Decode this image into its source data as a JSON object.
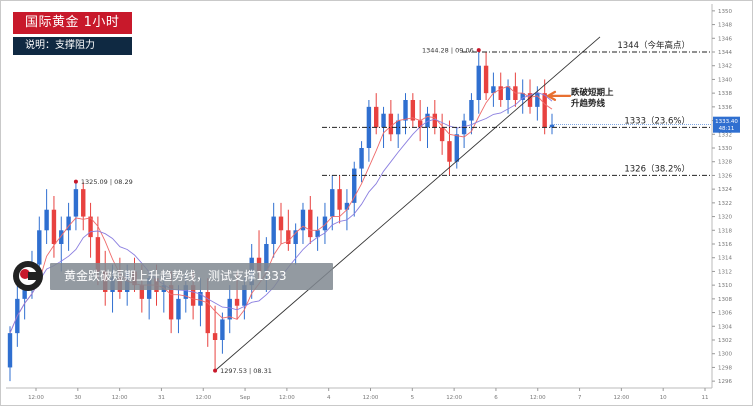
{
  "header": {
    "title": "国际黄金  1小时",
    "subtitle": "说明：支撑阻力"
  },
  "banner": {
    "text": "黄金跌破短期上升趋势线，测试支撑1333"
  },
  "colors": {
    "bull": "#2f6fd0",
    "bear": "#e8423f",
    "ma_fast": "#ef6b6b",
    "ma_slow": "#8b7fe0",
    "title_bg": "#c8192b",
    "subtitle_bg": "#0f2942",
    "price_tag": "#2f6fd0",
    "arrow": "#e87030"
  },
  "chart_data": {
    "type": "candlestick",
    "ylim": [
      1295,
      1351
    ],
    "y_ticks": [
      1296,
      1298,
      1300,
      1302,
      1304,
      1306,
      1308,
      1310,
      1312,
      1314,
      1316,
      1318,
      1320,
      1322,
      1324,
      1326,
      1328,
      1330,
      1332,
      1334,
      1336,
      1338,
      1340,
      1342,
      1344,
      1346,
      1348,
      1350
    ],
    "x_labels": [
      "12:00",
      "30",
      "12:00",
      "31",
      "12:00",
      "Sep",
      "12:00",
      "4",
      "12:00",
      "5",
      "12:00",
      "6",
      "12:00",
      "7",
      "12:00",
      "10",
      "11"
    ],
    "current_price": "1333.40",
    "current_sub": "48:11",
    "levels": [
      {
        "label": "1344（今年高点）",
        "price": 1344
      },
      {
        "label": "1333（23.6%）",
        "price": 1333
      },
      {
        "label": "1326（38.2%）",
        "price": 1326
      }
    ],
    "annotations": [
      {
        "text": "1325.09 | 08.29",
        "price": 1325.09
      },
      {
        "text": "1297.53 | 08.31",
        "price": 1297.53
      },
      {
        "text": "1344.28 | 09.06",
        "price": 1344.28
      }
    ],
    "callout": [
      "跌破短期上",
      "升趋势线"
    ],
    "trendline": [
      [
        1297.5,
        "start"
      ],
      [
        1344.5,
        "end"
      ]
    ],
    "candles": [
      [
        1298,
        1304,
        1296,
        1303
      ],
      [
        1303,
        1310,
        1301,
        1308
      ],
      [
        1308,
        1313,
        1305,
        1311
      ],
      [
        1311,
        1315,
        1308,
        1313
      ],
      [
        1313,
        1320,
        1310,
        1318
      ],
      [
        1318,
        1324,
        1316,
        1321
      ],
      [
        1321,
        1323,
        1314,
        1316
      ],
      [
        1316,
        1320,
        1312,
        1318
      ],
      [
        1318,
        1322,
        1315,
        1320
      ],
      [
        1320,
        1325.09,
        1318,
        1324
      ],
      [
        1324,
        1325,
        1318,
        1320
      ],
      [
        1320,
        1322,
        1314,
        1317
      ],
      [
        1317,
        1320,
        1310,
        1312
      ],
      [
        1312,
        1315,
        1307,
        1309
      ],
      [
        1309,
        1313,
        1306,
        1311
      ],
      [
        1311,
        1314,
        1308,
        1309
      ],
      [
        1309,
        1313,
        1307,
        1312
      ],
      [
        1312,
        1314,
        1309,
        1310
      ],
      [
        1310,
        1313,
        1306,
        1308
      ],
      [
        1308,
        1312,
        1305,
        1311
      ],
      [
        1311,
        1313,
        1307,
        1309
      ],
      [
        1309,
        1312,
        1306,
        1310
      ],
      [
        1310,
        1312,
        1303,
        1305
      ],
      [
        1305,
        1310,
        1303,
        1308
      ],
      [
        1308,
        1312,
        1306,
        1310
      ],
      [
        1310,
        1312,
        1305,
        1307
      ],
      [
        1307,
        1311,
        1304,
        1309
      ],
      [
        1309,
        1311,
        1301,
        1303
      ],
      [
        1303,
        1307,
        1297.53,
        1302
      ],
      [
        1302,
        1306,
        1300,
        1305
      ],
      [
        1305,
        1310,
        1303,
        1308
      ],
      [
        1308,
        1312,
        1305,
        1307
      ],
      [
        1307,
        1311,
        1305,
        1310
      ],
      [
        1310,
        1316,
        1308,
        1314
      ],
      [
        1314,
        1318,
        1311,
        1312
      ],
      [
        1312,
        1317,
        1309,
        1316
      ],
      [
        1316,
        1322,
        1314,
        1320
      ],
      [
        1320,
        1322,
        1316,
        1318
      ],
      [
        1318,
        1321,
        1315,
        1316
      ],
      [
        1316,
        1319,
        1313,
        1318
      ],
      [
        1318,
        1322,
        1316,
        1321
      ],
      [
        1321,
        1323,
        1316,
        1317
      ],
      [
        1317,
        1320,
        1315,
        1318
      ],
      [
        1318,
        1322,
        1316,
        1320
      ],
      [
        1320,
        1326,
        1318,
        1324
      ],
      [
        1324,
        1326,
        1319,
        1321
      ],
      [
        1321,
        1324,
        1318,
        1322
      ],
      [
        1322,
        1328,
        1320,
        1327
      ],
      [
        1327,
        1331,
        1325,
        1330
      ],
      [
        1330,
        1337,
        1328,
        1336
      ],
      [
        1336,
        1338,
        1332,
        1333
      ],
      [
        1333,
        1336,
        1330,
        1335
      ],
      [
        1335,
        1337,
        1331,
        1332
      ],
      [
        1332,
        1335,
        1330,
        1334
      ],
      [
        1334,
        1338,
        1332,
        1337
      ],
      [
        1337,
        1338,
        1333,
        1334
      ],
      [
        1334,
        1337,
        1331,
        1333
      ],
      [
        1333,
        1336,
        1330,
        1335
      ],
      [
        1335,
        1337,
        1332,
        1333
      ],
      [
        1333,
        1335,
        1329,
        1331
      ],
      [
        1331,
        1334,
        1326,
        1328
      ],
      [
        1328,
        1333,
        1327,
        1332
      ],
      [
        1332,
        1335,
        1330,
        1334
      ],
      [
        1334,
        1338,
        1332,
        1337
      ],
      [
        1337,
        1344.28,
        1335,
        1342
      ],
      [
        1342,
        1344,
        1337,
        1338
      ],
      [
        1338,
        1341,
        1336,
        1339
      ],
      [
        1339,
        1341,
        1336,
        1337
      ],
      [
        1337,
        1340,
        1335,
        1339
      ],
      [
        1339,
        1341,
        1336,
        1337
      ],
      [
        1337,
        1340,
        1335,
        1338
      ],
      [
        1338,
        1340,
        1335,
        1336
      ],
      [
        1336,
        1339,
        1334,
        1338
      ],
      [
        1338,
        1340,
        1332,
        1333
      ],
      [
        1333,
        1335,
        1332,
        1333.4
      ]
    ]
  }
}
